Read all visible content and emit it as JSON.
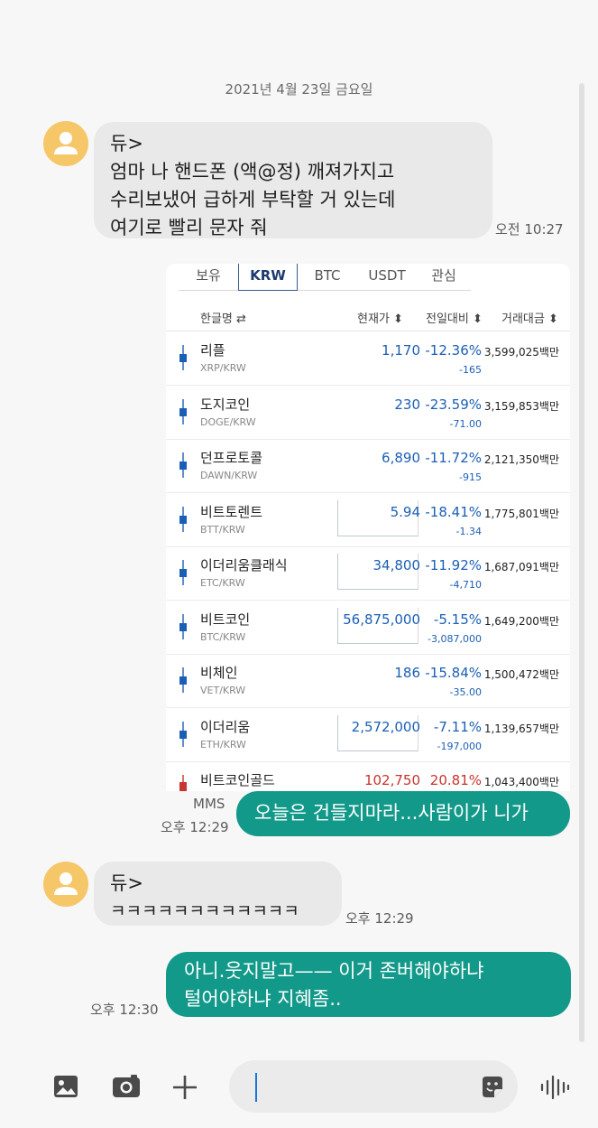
{
  "date_header": "2021년 4월 23일 금요일",
  "messages": [
    {
      "sender": "듀>",
      "lines": [
        "엄마 나 핸드폰 (액@정) 깨져가지고",
        "수리보냈어 급하게 부탁할 거 있는데",
        "여기로 빨리 문자 줘"
      ],
      "time": "오전 10:27"
    },
    {
      "mms_label": "MMS",
      "text": "오늘은 건들지마라...사람이가 니가",
      "time": "오후 12:29"
    },
    {
      "sender": "듀>",
      "lines": [
        "ㅋㅋㅋㅋㅋㅋㅋㅋㅋㅋㅋㅋ"
      ],
      "time": "오후 12:29"
    },
    {
      "lines": [
        "아니.웃지말고—— 이거 존버해야하냐",
        "털어야하냐 지혜좀.."
      ],
      "time": "오후 12:30"
    }
  ],
  "exchange": {
    "tabs": [
      "보유",
      "KRW",
      "BTC",
      "USDT",
      "관심"
    ],
    "selected_tab": "KRW",
    "headers": {
      "name": "한글명 ⇄",
      "price": "현재가 ⬍",
      "change": "전일대비 ⬍",
      "volume": "거래대금 ⬍"
    },
    "rows": [
      {
        "name": "리플",
        "pair": "XRP/KRW",
        "price": "1,170",
        "pct": "-12.36%",
        "diff": "-165",
        "volume": "3,599,025백만",
        "trend": "down",
        "boxed": false
      },
      {
        "name": "도지코인",
        "pair": "DOGE/KRW",
        "price": "230",
        "pct": "-23.59%",
        "diff": "-71.00",
        "volume": "3,159,853백만",
        "trend": "down",
        "boxed": false
      },
      {
        "name": "던프로토콜",
        "pair": "DAWN/KRW",
        "price": "6,890",
        "pct": "-11.72%",
        "diff": "-915",
        "volume": "2,121,350백만",
        "trend": "down",
        "boxed": false
      },
      {
        "name": "비트토렌트",
        "pair": "BTT/KRW",
        "price": "5.94",
        "pct": "-18.41%",
        "diff": "-1.34",
        "volume": "1,775,801백만",
        "trend": "down",
        "boxed": true
      },
      {
        "name": "이더리움클래식",
        "pair": "ETC/KRW",
        "price": "34,800",
        "pct": "-11.92%",
        "diff": "-4,710",
        "volume": "1,687,091백만",
        "trend": "down",
        "boxed": true
      },
      {
        "name": "비트코인",
        "pair": "BTC/KRW",
        "price": "56,875,000",
        "pct": "-5.15%",
        "diff": "-3,087,000",
        "volume": "1,649,200백만",
        "trend": "down",
        "boxed": true
      },
      {
        "name": "비체인",
        "pair": "VET/KRW",
        "price": "186",
        "pct": "-15.84%",
        "diff": "-35.00",
        "volume": "1,500,472백만",
        "trend": "down",
        "boxed": false
      },
      {
        "name": "이더리움",
        "pair": "ETH/KRW",
        "price": "2,572,000",
        "pct": "-7.11%",
        "diff": "-197,000",
        "volume": "1,139,657백만",
        "trend": "down",
        "boxed": true
      },
      {
        "name": "비트코인골드",
        "pair": "",
        "price": "102,750",
        "pct": "20.81%",
        "diff": "",
        "volume": "1,043,400백만",
        "trend": "up",
        "boxed": false
      }
    ],
    "colors": {
      "down": "#1b5fb5",
      "up": "#c8342e"
    }
  },
  "input": {
    "placeholder": ""
  },
  "colors": {
    "outgoing_bubble": "#13998a",
    "incoming_bubble": "#e9e9e9",
    "avatar": "#f6c768"
  },
  "icons": {
    "gallery": "image-icon",
    "camera": "camera-icon",
    "add": "plus-icon",
    "sticker": "sticker-icon",
    "voice": "voice-wave-icon"
  }
}
